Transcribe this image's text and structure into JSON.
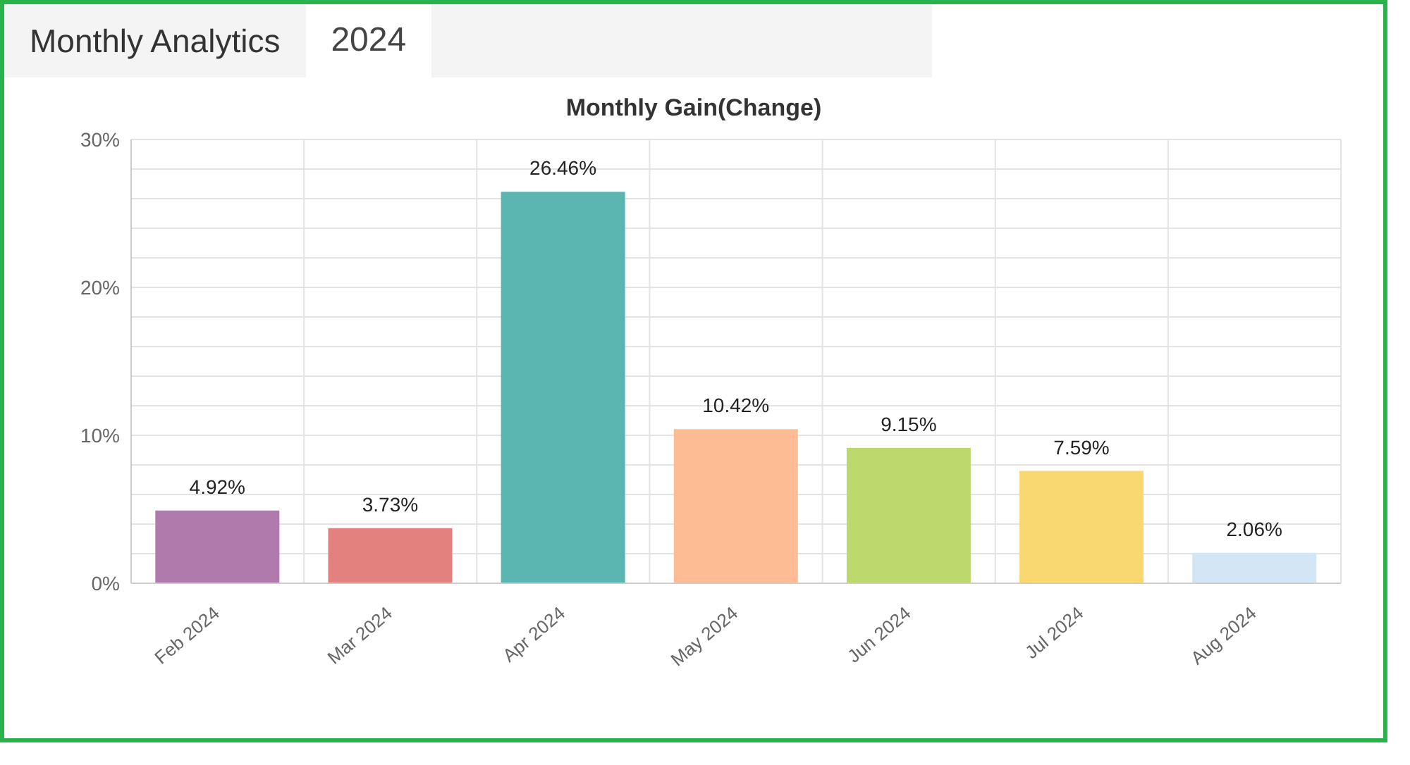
{
  "chart_data": {
    "type": "bar",
    "title": "Monthly Gain(Change)",
    "annotations": [
      "Monthly Analytics",
      "2024"
    ],
    "categories": [
      "Feb 2024",
      "Mar 2024",
      "Apr 2024",
      "May 2024",
      "Jun 2024",
      "Jul 2024",
      "Aug 2024"
    ],
    "values": [
      4.92,
      3.73,
      26.46,
      10.42,
      9.15,
      7.59,
      2.06
    ],
    "value_labels": [
      "4.92%",
      "3.73%",
      "26.46%",
      "10.42%",
      "9.15%",
      "7.59%",
      "2.06%"
    ],
    "colors": [
      "#b07aac",
      "#e3817f",
      "#5bb5b1",
      "#fdbc94",
      "#bdd86d",
      "#f9d872",
      "#d3e6f6"
    ],
    "ylim": [
      0,
      30
    ],
    "yticks": [
      {
        "value": 0,
        "label": "0%"
      },
      {
        "value": 2,
        "label": null
      },
      {
        "value": 4,
        "label": null
      },
      {
        "value": 6,
        "label": null
      },
      {
        "value": 8,
        "label": null
      },
      {
        "value": 10,
        "label": "10%"
      },
      {
        "value": 12,
        "label": null
      },
      {
        "value": 14,
        "label": null
      },
      {
        "value": 16,
        "label": null
      },
      {
        "value": 18,
        "label": null
      },
      {
        "value": 20,
        "label": "20%"
      },
      {
        "value": 22,
        "label": null
      },
      {
        "value": 24,
        "label": null
      },
      {
        "value": 26,
        "label": null
      },
      {
        "value": 28,
        "label": null
      },
      {
        "value": 30,
        "label": "30%"
      }
    ],
    "grid": true
  }
}
